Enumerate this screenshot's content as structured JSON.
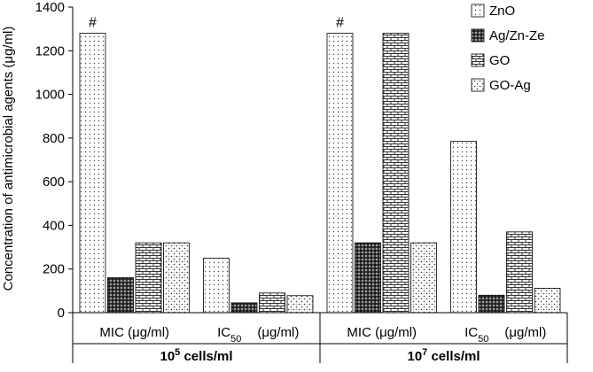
{
  "chart_data": {
    "type": "bar",
    "title": "",
    "ylabel": "Concentration of antimicrobial agents (μg/ml)",
    "ylim": [
      0,
      1400
    ],
    "y_ticks": [
      0,
      200,
      400,
      600,
      800,
      1000,
      1200,
      1400
    ],
    "grid": false,
    "legend_position": "top-right",
    "groups": [
      {
        "label_base": "10",
        "label_sup": "5",
        "label_rest": " cells/ml",
        "categories": [
          {
            "main": "MIC (μg/ml)",
            "sub": "",
            "rest": ""
          },
          {
            "main": "IC",
            "sub": "50",
            "rest": "(μg/ml)"
          }
        ]
      },
      {
        "label_base": "10",
        "label_sup": "7",
        "label_rest": " cells/ml",
        "categories": [
          {
            "main": "MIC (μg/ml)",
            "sub": "",
            "rest": ""
          },
          {
            "main": "IC",
            "sub": "50",
            "rest": "(μg/ml)"
          }
        ]
      }
    ],
    "series": [
      {
        "name": "ZnO",
        "pattern": "dots",
        "values": [
          1280,
          250,
          1280,
          785
        ]
      },
      {
        "name": "Ag/Zn-Ze",
        "pattern": "dark",
        "values": [
          160,
          45,
          320,
          80
        ]
      },
      {
        "name": "GO",
        "pattern": "brick",
        "values": [
          320,
          90,
          1280,
          370
        ]
      },
      {
        "name": "GO-Ag",
        "pattern": "hatch",
        "values": [
          320,
          78,
          320,
          112
        ]
      }
    ],
    "annotations": [
      {
        "text": "#",
        "series_index": 0,
        "category_index": 0
      },
      {
        "text": "#",
        "series_index": 0,
        "category_index": 2
      }
    ]
  }
}
